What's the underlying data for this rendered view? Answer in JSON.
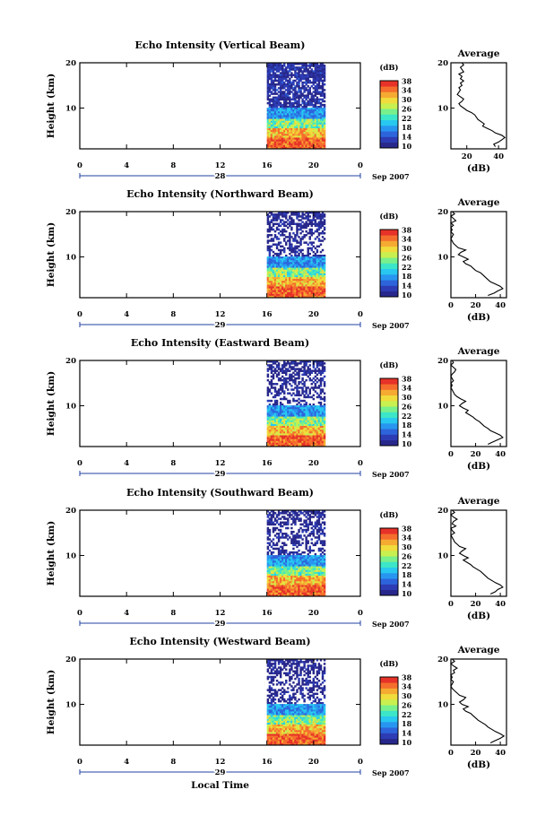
{
  "figure": {
    "x_axis_label": "Local Time",
    "date_suffix": "Sep 2007",
    "colorbar_unit": "(dB)",
    "average_title": "Average",
    "average_xlabel": "(dB)",
    "height_label": "Height (km)",
    "colormap": [
      "#28288c",
      "#2d3cb4",
      "#2d64dc",
      "#2896f0",
      "#28c8f0",
      "#3ce6c8",
      "#78f08c",
      "#c8f050",
      "#f0dc3c",
      "#f5aa32",
      "#f56e2d",
      "#e63228"
    ]
  },
  "chart_data": [
    {
      "type": "heatmap",
      "title": "Echo Intensity (Vertical Beam)",
      "x_ticks": [
        "0",
        "4",
        "8",
        "12",
        "16",
        "20",
        "0"
      ],
      "x_range_hours": [
        0,
        24
      ],
      "day_label": "28",
      "y_ticks": [
        "10",
        "20"
      ],
      "y_range_km": [
        1,
        20
      ],
      "data_time_range_hours": [
        16,
        21
      ],
      "colorbar_ticks": [
        "10",
        "14",
        "18",
        "22",
        "26",
        "30",
        "34",
        "38"
      ],
      "colorbar_range_db": [
        10,
        38
      ],
      "average": {
        "x_ticks": [
          "20",
          "40"
        ],
        "x_range_db": [
          10,
          45
        ],
        "y_ticks": [
          "10",
          "20"
        ],
        "height_km": [
          1.5,
          2,
          2.5,
          3,
          3.5,
          4,
          4.5,
          5,
          5.5,
          6,
          6.5,
          7,
          7.5,
          8,
          8.5,
          9,
          9.5,
          10,
          10.5,
          11,
          11.5,
          12,
          12.5,
          13,
          13.5,
          14,
          14.5,
          15,
          15.5,
          16,
          16.5,
          17,
          17.5,
          18,
          18.5,
          19,
          19.5,
          20
        ],
        "echo_db": [
          38,
          37,
          40,
          42,
          44,
          42,
          38,
          36,
          33,
          30,
          31,
          29,
          27,
          26,
          25,
          23,
          20,
          18,
          16,
          15,
          17,
          18,
          16,
          14,
          15,
          16,
          15,
          17,
          16,
          18,
          16,
          17,
          15,
          18,
          17,
          16,
          18,
          17
        ]
      }
    },
    {
      "type": "heatmap",
      "title": "Echo Intensity (Northward Beam)",
      "x_ticks": [
        "0",
        "4",
        "8",
        "12",
        "16",
        "20",
        "0"
      ],
      "x_range_hours": [
        0,
        24
      ],
      "day_label": "29",
      "y_ticks": [
        "10",
        "20"
      ],
      "y_range_km": [
        1,
        20
      ],
      "data_time_range_hours": [
        16,
        21
      ],
      "colorbar_ticks": [
        "10",
        "14",
        "18",
        "22",
        "26",
        "30",
        "34",
        "38"
      ],
      "colorbar_range_db": [
        10,
        38
      ],
      "average": {
        "x_ticks": [
          "0",
          "20",
          "40"
        ],
        "x_range_db": [
          0,
          45
        ],
        "y_ticks": [
          "10",
          "20"
        ],
        "height_km": [
          1.5,
          2,
          2.5,
          3,
          3.5,
          4,
          4.5,
          5,
          5.5,
          6,
          6.5,
          7,
          7.5,
          8,
          8.5,
          9,
          9.5,
          10,
          10.5,
          11,
          11.5,
          12,
          12.5,
          13,
          13.5,
          14,
          14.5,
          15,
          15.5,
          16,
          16.5,
          17,
          17.5,
          18,
          18.5,
          19,
          19.5,
          20
        ],
        "echo_db": [
          30,
          35,
          38,
          42,
          40,
          36,
          32,
          30,
          28,
          26,
          24,
          20,
          18,
          16,
          12,
          10,
          14,
          10,
          6,
          8,
          12,
          6,
          4,
          2,
          1,
          0,
          1,
          2,
          0,
          1,
          0,
          2,
          0,
          4,
          2,
          0,
          3,
          1
        ]
      }
    },
    {
      "type": "heatmap",
      "title": "Echo Intensity (Eastward Beam)",
      "x_ticks": [
        "0",
        "4",
        "8",
        "12",
        "16",
        "20",
        "0"
      ],
      "x_range_hours": [
        0,
        24
      ],
      "day_label": "29",
      "y_ticks": [
        "10",
        "20"
      ],
      "y_range_km": [
        1,
        20
      ],
      "data_time_range_hours": [
        16,
        21
      ],
      "colorbar_ticks": [
        "10",
        "14",
        "18",
        "22",
        "26",
        "30",
        "34",
        "38"
      ],
      "colorbar_range_db": [
        10,
        38
      ],
      "average": {
        "x_ticks": [
          "0",
          "20",
          "40"
        ],
        "x_range_db": [
          0,
          45
        ],
        "y_ticks": [
          "10",
          "20"
        ],
        "height_km": [
          1.5,
          2,
          2.5,
          3,
          3.5,
          4,
          4.5,
          5,
          5.5,
          6,
          6.5,
          7,
          7.5,
          8,
          8.5,
          9,
          9.5,
          10,
          10.5,
          11,
          11.5,
          12,
          12.5,
          13,
          13.5,
          14,
          14.5,
          15,
          15.5,
          16,
          16.5,
          17,
          17.5,
          18,
          18.5,
          19,
          19.5,
          20
        ],
        "echo_db": [
          30,
          34,
          38,
          42,
          40,
          36,
          32,
          30,
          27,
          25,
          23,
          20,
          18,
          15,
          12,
          14,
          10,
          7,
          9,
          12,
          8,
          5,
          3,
          2,
          1,
          0,
          1,
          0,
          2,
          1,
          0,
          1,
          3,
          4,
          2,
          0,
          2,
          1
        ]
      }
    },
    {
      "type": "heatmap",
      "title": "Echo Intensity (Southward Beam)",
      "x_ticks": [
        "0",
        "4",
        "8",
        "12",
        "16",
        "20",
        "0"
      ],
      "x_range_hours": [
        0,
        24
      ],
      "day_label": "29",
      "y_ticks": [
        "10",
        "20"
      ],
      "y_range_km": [
        1,
        20
      ],
      "data_time_range_hours": [
        16,
        21
      ],
      "colorbar_ticks": [
        "10",
        "14",
        "18",
        "22",
        "26",
        "30",
        "34",
        "38"
      ],
      "colorbar_range_db": [
        10,
        38
      ],
      "average": {
        "x_ticks": [
          "0",
          "20",
          "40"
        ],
        "x_range_db": [
          0,
          45
        ],
        "y_ticks": [
          "10",
          "20"
        ],
        "height_km": [
          1.5,
          2,
          2.5,
          3,
          3.5,
          4,
          4.5,
          5,
          5.5,
          6,
          6.5,
          7,
          7.5,
          8,
          8.5,
          9,
          9.5,
          10,
          10.5,
          11,
          11.5,
          12,
          12.5,
          13,
          13.5,
          14,
          14.5,
          15,
          15.5,
          16,
          16.5,
          17,
          17.5,
          18,
          18.5,
          19,
          19.5,
          20
        ],
        "echo_db": [
          32,
          36,
          38,
          42,
          40,
          36,
          33,
          30,
          28,
          26,
          24,
          21,
          18,
          16,
          13,
          10,
          14,
          10,
          7,
          9,
          12,
          7,
          5,
          3,
          2,
          1,
          0,
          3,
          1,
          0,
          4,
          1,
          2,
          5,
          2,
          0,
          3,
          1
        ]
      }
    },
    {
      "type": "heatmap",
      "title": "Echo Intensity (Westward Beam)",
      "x_ticks": [
        "0",
        "4",
        "8",
        "12",
        "16",
        "20",
        "0"
      ],
      "x_range_hours": [
        0,
        24
      ],
      "day_label": "29",
      "y_ticks": [
        "10",
        "20"
      ],
      "y_range_km": [
        1,
        20
      ],
      "data_time_range_hours": [
        16,
        21
      ],
      "colorbar_ticks": [
        "10",
        "14",
        "18",
        "22",
        "26",
        "30",
        "34",
        "38"
      ],
      "colorbar_range_db": [
        10,
        38
      ],
      "average": {
        "x_ticks": [
          "0",
          "20",
          "40"
        ],
        "x_range_db": [
          0,
          45
        ],
        "y_ticks": [
          "10",
          "20"
        ],
        "height_km": [
          1.5,
          2,
          2.5,
          3,
          3.5,
          4,
          4.5,
          5,
          5.5,
          6,
          6.5,
          7,
          7.5,
          8,
          8.5,
          9,
          9.5,
          10,
          10.5,
          11,
          11.5,
          12,
          12.5,
          13,
          13.5,
          14,
          14.5,
          15,
          15.5,
          16,
          16.5,
          17,
          17.5,
          18,
          18.5,
          19,
          19.5,
          20
        ],
        "echo_db": [
          32,
          36,
          40,
          43,
          40,
          36,
          33,
          30,
          28,
          25,
          22,
          20,
          18,
          16,
          12,
          10,
          14,
          9,
          7,
          10,
          12,
          7,
          5,
          3,
          1,
          0,
          1,
          2,
          0,
          1,
          0,
          3,
          2,
          5,
          2,
          0,
          3,
          1
        ]
      }
    }
  ]
}
